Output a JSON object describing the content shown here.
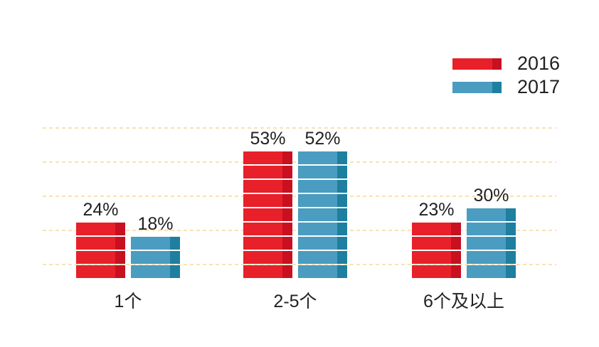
{
  "chart_data": {
    "type": "bar",
    "title": "",
    "xlabel": "",
    "ylabel": "",
    "categories": [
      "1个",
      "2-5个",
      "6个及以上"
    ],
    "series": [
      {
        "name": "2016",
        "values": [
          24,
          53,
          23
        ],
        "labels": [
          "24%",
          "53%",
          "23%"
        ],
        "color": "#e8202a",
        "shade": "#c81020"
      },
      {
        "name": "2017",
        "values": [
          18,
          52,
          30
        ],
        "labels": [
          "18%",
          "52%",
          "30%"
        ],
        "color": "#4a9cc0",
        "shade": "#1e7fa0"
      }
    ],
    "ylim": [
      0,
      60
    ],
    "grid": true,
    "legend_position": "top-right"
  }
}
